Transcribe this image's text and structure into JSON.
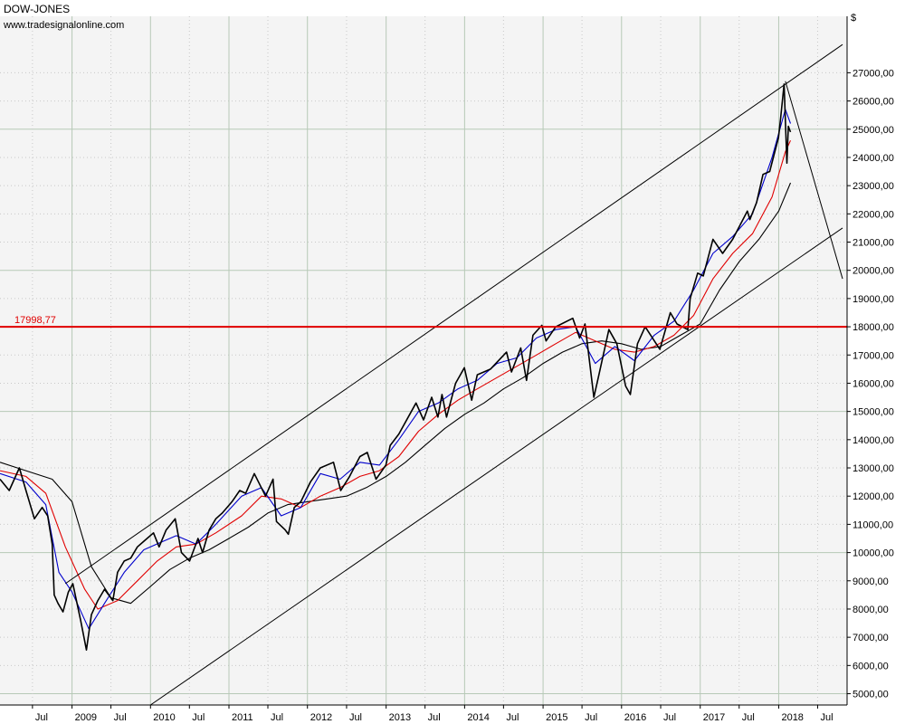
{
  "header": {
    "title": "DOW-JONES",
    "source": "www.tradesignalonline.com",
    "currency_symbol": "$"
  },
  "chart_data": {
    "type": "line",
    "title": "DOW-JONES",
    "y_scale": "linear",
    "ylim": [
      4600,
      29000
    ],
    "xlim": [
      "2008-02-01",
      "2018-11-15"
    ],
    "y_ticks": [
      5000,
      6000,
      7000,
      8000,
      9000,
      10000,
      11000,
      12000,
      13000,
      14000,
      15000,
      16000,
      17000,
      18000,
      19000,
      20000,
      21000,
      22000,
      23000,
      24000,
      25000,
      26000,
      27000
    ],
    "y_tick_labels": [
      "5000,00",
      "6000,00",
      "7000,00",
      "8000,00",
      "9000,00",
      "10000,00",
      "11000,00",
      "12000,00",
      "13000,00",
      "14000,00",
      "15000,00",
      "16000,00",
      "17000,00",
      "18000,00",
      "19000,00",
      "20000,00",
      "21000,00",
      "22000,00",
      "23000,00",
      "24000,00",
      "25000,00",
      "26000,00",
      "27000,00"
    ],
    "x_ticks": [
      {
        "date": "2008-07-01",
        "label": "Jul"
      },
      {
        "date": "2009-01-01",
        "label": "2009"
      },
      {
        "date": "2009-07-01",
        "label": "Jul"
      },
      {
        "date": "2010-01-01",
        "label": "2010"
      },
      {
        "date": "2010-07-01",
        "label": "Jul"
      },
      {
        "date": "2011-01-01",
        "label": "2011"
      },
      {
        "date": "2011-07-01",
        "label": "Jul"
      },
      {
        "date": "2012-01-01",
        "label": "2012"
      },
      {
        "date": "2012-07-01",
        "label": "Jul"
      },
      {
        "date": "2013-01-01",
        "label": "2013"
      },
      {
        "date": "2013-07-01",
        "label": "Jul"
      },
      {
        "date": "2014-01-01",
        "label": "2014"
      },
      {
        "date": "2014-07-01",
        "label": "Jul"
      },
      {
        "date": "2015-01-01",
        "label": "2015"
      },
      {
        "date": "2015-07-01",
        "label": "Jul"
      },
      {
        "date": "2016-01-01",
        "label": "2016"
      },
      {
        "date": "2016-07-01",
        "label": "Jul"
      },
      {
        "date": "2017-01-01",
        "label": "2017"
      },
      {
        "date": "2017-07-01",
        "label": "Jul"
      },
      {
        "date": "2018-01-01",
        "label": "2018"
      },
      {
        "date": "2018-07-01",
        "label": "Jul"
      }
    ],
    "grid": true,
    "horizontal_line": {
      "value": 17998.77,
      "label": "17998,77",
      "color": "#e00000"
    },
    "series": [
      {
        "color": "#000000",
        "style": "price",
        "x": [
          "2008-02-01",
          "2008-03-15",
          "2008-05-01",
          "2008-06-01",
          "2008-07-10",
          "2008-08-15",
          "2008-09-10",
          "2008-10-01",
          "2008-10-10",
          "2008-10-28",
          "2008-11-20",
          "2008-12-15",
          "2009-01-05",
          "2009-02-10",
          "2009-03-09",
          "2009-04-01",
          "2009-05-01",
          "2009-06-01",
          "2009-07-10",
          "2009-08-01",
          "2009-09-01",
          "2009-10-01",
          "2009-11-01",
          "2009-12-01",
          "2010-01-15",
          "2010-02-10",
          "2010-03-15",
          "2010-04-26",
          "2010-05-25",
          "2010-07-02",
          "2010-08-10",
          "2010-08-31",
          "2010-10-01",
          "2010-11-01",
          "2010-12-01",
          "2011-01-15",
          "2011-02-20",
          "2011-03-20",
          "2011-04-29",
          "2011-06-20",
          "2011-07-25",
          "2011-08-10",
          "2011-09-20",
          "2011-10-04",
          "2011-11-01",
          "2011-12-01",
          "2012-01-15",
          "2012-03-01",
          "2012-05-01",
          "2012-06-04",
          "2012-07-15",
          "2012-09-01",
          "2012-10-05",
          "2012-11-15",
          "2012-12-31",
          "2013-01-20",
          "2013-03-01",
          "2013-05-20",
          "2013-06-24",
          "2013-08-01",
          "2013-08-30",
          "2013-09-18",
          "2013-10-09",
          "2013-11-20",
          "2013-12-31",
          "2014-02-03",
          "2014-03-01",
          "2014-05-01",
          "2014-07-15",
          "2014-08-07",
          "2014-09-19",
          "2014-10-16",
          "2014-11-15",
          "2014-12-26",
          "2015-01-15",
          "2015-03-01",
          "2015-05-19",
          "2015-06-20",
          "2015-07-15",
          "2015-08-25",
          "2015-09-15",
          "2015-11-03",
          "2015-12-10",
          "2016-01-20",
          "2016-02-11",
          "2016-03-15",
          "2016-04-20",
          "2016-06-27",
          "2016-08-15",
          "2016-09-15",
          "2016-11-04",
          "2016-11-15",
          "2016-12-20",
          "2017-01-15",
          "2017-03-01",
          "2017-04-15",
          "2017-06-01",
          "2017-08-08",
          "2017-08-20",
          "2017-09-20",
          "2017-10-20",
          "2017-11-20",
          "2017-12-31",
          "2018-01-10",
          "2018-01-26",
          "2018-02-08",
          "2018-02-15",
          "2018-02-25"
        ],
        "y": [
          12600,
          12200,
          13000,
          12200,
          11200,
          11600,
          11300,
          10300,
          8500,
          8200,
          7900,
          8600,
          8900,
          7600,
          6550,
          7800,
          8300,
          8700,
          8300,
          9300,
          9700,
          9800,
          10200,
          10400,
          10700,
          10200,
          10800,
          11200,
          10000,
          9700,
          10500,
          10000,
          10800,
          11200,
          11400,
          11800,
          12200,
          12100,
          12800,
          12000,
          12600,
          11100,
          10800,
          10650,
          11600,
          11800,
          12500,
          13000,
          13200,
          12200,
          12700,
          13400,
          13550,
          12600,
          13100,
          13800,
          14200,
          15300,
          14700,
          15500,
          14800,
          15600,
          14800,
          16000,
          16550,
          15400,
          16300,
          16500,
          17100,
          16400,
          17250,
          16100,
          17700,
          18050,
          17500,
          18000,
          18300,
          17600,
          18100,
          15500,
          16200,
          17900,
          17400,
          15900,
          15600,
          17400,
          18000,
          17200,
          18500,
          18100,
          17900,
          19000,
          19900,
          19800,
          21100,
          20600,
          21100,
          22100,
          21800,
          22400,
          23400,
          23500,
          24700,
          25400,
          26600,
          23800,
          25100,
          24900
        ]
      },
      {
        "color": "#0000cc",
        "style": "moving-average",
        "x": [
          "2008-02-01",
          "2008-06-01",
          "2008-09-01",
          "2008-11-01",
          "2009-01-01",
          "2009-03-20",
          "2009-06-01",
          "2009-09-01",
          "2009-12-01",
          "2010-03-01",
          "2010-05-01",
          "2010-08-01",
          "2010-11-01",
          "2011-03-01",
          "2011-06-01",
          "2011-09-01",
          "2011-12-01",
          "2012-03-01",
          "2012-06-01",
          "2012-09-01",
          "2012-12-01",
          "2013-03-01",
          "2013-06-01",
          "2013-09-01",
          "2013-12-01",
          "2014-03-01",
          "2014-06-01",
          "2014-09-01",
          "2014-12-01",
          "2015-03-01",
          "2015-06-01",
          "2015-09-01",
          "2015-12-01",
          "2016-03-01",
          "2016-06-01",
          "2016-09-01",
          "2016-12-01",
          "2017-03-01",
          "2017-06-01",
          "2017-09-01",
          "2017-12-01",
          "2018-02-01",
          "2018-02-25"
        ],
        "y": [
          12800,
          12500,
          11700,
          9300,
          8600,
          7300,
          8200,
          9300,
          10100,
          10400,
          10600,
          10300,
          11000,
          12000,
          12300,
          11300,
          11600,
          12800,
          12600,
          13200,
          13100,
          14000,
          15000,
          15300,
          15800,
          16100,
          16700,
          16900,
          17600,
          17900,
          18000,
          16700,
          17300,
          16800,
          17700,
          18200,
          19300,
          20600,
          21200,
          22000,
          24000,
          25700,
          25200
        ]
      },
      {
        "color": "#e00000",
        "style": "moving-average",
        "x": [
          "2008-02-01",
          "2008-06-01",
          "2008-09-01",
          "2008-12-01",
          "2009-03-01",
          "2009-05-01",
          "2009-08-01",
          "2009-11-01",
          "2010-02-01",
          "2010-05-01",
          "2010-08-01",
          "2010-11-01",
          "2011-03-01",
          "2011-06-01",
          "2011-09-01",
          "2011-12-01",
          "2012-03-01",
          "2012-06-01",
          "2012-09-01",
          "2012-12-01",
          "2013-03-01",
          "2013-06-01",
          "2013-09-01",
          "2013-12-01",
          "2014-03-01",
          "2014-06-01",
          "2014-09-01",
          "2014-12-01",
          "2015-03-01",
          "2015-06-01",
          "2015-09-01",
          "2015-12-01",
          "2016-03-01",
          "2016-06-01",
          "2016-09-01",
          "2016-12-01",
          "2017-03-01",
          "2017-06-01",
          "2017-09-01",
          "2017-12-01",
          "2018-02-01",
          "2018-02-25"
        ],
        "y": [
          12900,
          12700,
          12100,
          10200,
          8700,
          8000,
          8300,
          9000,
          9700,
          10200,
          10300,
          10700,
          11300,
          12000,
          11900,
          11600,
          12000,
          12300,
          12700,
          12900,
          13400,
          14300,
          14900,
          15400,
          15800,
          16200,
          16600,
          17000,
          17400,
          17800,
          17500,
          17200,
          17100,
          17300,
          17700,
          18400,
          19700,
          20600,
          21300,
          22600,
          24200,
          24600
        ]
      },
      {
        "color": "#000000",
        "style": "long-average",
        "x": [
          "2008-02-01",
          "2008-06-01",
          "2008-10-01",
          "2009-01-01",
          "2009-04-01",
          "2009-07-01",
          "2009-10-01",
          "2010-01-01",
          "2010-04-01",
          "2010-07-01",
          "2010-10-01",
          "2011-01-01",
          "2011-04-01",
          "2011-07-01",
          "2011-10-01",
          "2012-01-01",
          "2012-04-01",
          "2012-07-01",
          "2012-10-01",
          "2013-01-01",
          "2013-04-01",
          "2013-07-01",
          "2013-10-01",
          "2014-01-01",
          "2014-04-01",
          "2014-07-01",
          "2014-10-01",
          "2015-01-01",
          "2015-04-01",
          "2015-07-01",
          "2015-10-01",
          "2016-01-01",
          "2016-04-01",
          "2016-07-01",
          "2016-10-01",
          "2017-01-01",
          "2017-04-01",
          "2017-07-01",
          "2017-10-01",
          "2018-01-01",
          "2018-02-25"
        ],
        "y": [
          13200,
          12900,
          12600,
          11800,
          9500,
          8400,
          8200,
          8800,
          9400,
          9800,
          10100,
          10500,
          10900,
          11400,
          11700,
          11800,
          11900,
          12000,
          12300,
          12700,
          13200,
          13800,
          14400,
          14900,
          15300,
          15800,
          16200,
          16700,
          17100,
          17400,
          17500,
          17400,
          17200,
          17300,
          17700,
          18100,
          19300,
          20300,
          21100,
          22100,
          23100
        ]
      }
    ],
    "trend_lines": [
      {
        "from": {
          "x": "2008-12-01",
          "y": 8900
        },
        "to": {
          "x": "2018-10-25",
          "y": 28000
        }
      },
      {
        "from": {
          "x": "2010-01-01",
          "y": 4600
        },
        "to": {
          "x": "2018-10-25",
          "y": 21500
        }
      },
      {
        "from": {
          "x": "2018-02-01",
          "y": 26700
        },
        "to": {
          "x": "2018-10-25",
          "y": 19700
        }
      }
    ]
  }
}
